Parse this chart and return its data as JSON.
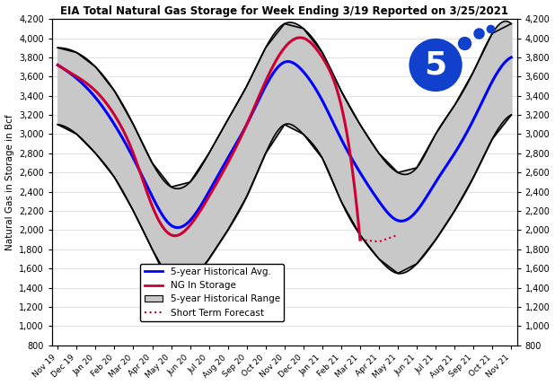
{
  "title": "EIA Total Natural Gas Storage for Week Ending 3/19 Reported on 3/25/2021",
  "ylabel": "Natural Gas in Storage in Bcf",
  "ylim": [
    800,
    4200
  ],
  "yticks": [
    800,
    1000,
    1200,
    1400,
    1600,
    1800,
    2000,
    2200,
    2400,
    2600,
    2800,
    3000,
    3200,
    3400,
    3600,
    3800,
    4000,
    4200
  ],
  "x_labels": [
    "Nov 19",
    "Dec 19",
    "Jan 20",
    "Feb 20",
    "Mar 20",
    "Apr 20",
    "May 20",
    "Jun 20",
    "Jul 20",
    "Aug 20",
    "Sep 20",
    "Oct 20",
    "Nov 20",
    "Dec 20",
    "Jan 21",
    "Feb 21",
    "Mar 21",
    "Apr 21",
    "May 21",
    "Jun 21",
    "Jul 21",
    "Aug 21",
    "Sep 21",
    "Oct 21",
    "Nov 21"
  ],
  "colors": {
    "hist_avg": "#0000FF",
    "ng_storage": "#CC0033",
    "hist_range_fill": "#C8C8C8",
    "hist_range_edge": "#000000",
    "forecast": "#CC0033",
    "background": "#FFFFFF",
    "logo_blue": "#1040CC"
  },
  "avg_vals": [
    3720,
    3580,
    3380,
    3100,
    2750,
    2350,
    2050,
    2100,
    2400,
    2750,
    3100,
    3500,
    3750,
    3650,
    3350,
    2950,
    2600,
    2300,
    2100,
    2200,
    2500,
    2800,
    3150,
    3550,
    3800
  ],
  "ng_actual": [
    3720,
    3600,
    3450,
    3200,
    2800,
    2250,
    1950,
    2050,
    2350,
    2700,
    3100,
    3550,
    3900,
    4000,
    3800,
    3300,
    1900,
    null,
    null,
    null,
    null,
    null,
    null,
    null,
    null
  ],
  "forecast_indices": [
    15,
    16,
    17,
    18
  ],
  "forecast_vals": [
    3300,
    1900,
    1880,
    1950
  ],
  "upper_vals": [
    3900,
    3850,
    3700,
    3450,
    3100,
    2700,
    2450,
    2500,
    2800,
    3150,
    3500,
    3900,
    4150,
    4100,
    3850,
    3450,
    3100,
    2800,
    2600,
    2650,
    3000,
    3300,
    3650,
    4050,
    4150
  ],
  "lower_vals": [
    3100,
    3000,
    2800,
    2550,
    2200,
    1800,
    1450,
    1450,
    1700,
    2000,
    2350,
    2800,
    3100,
    3000,
    2750,
    2300,
    1950,
    1700,
    1550,
    1650,
    1900,
    2200,
    2550,
    2950,
    3200
  ]
}
